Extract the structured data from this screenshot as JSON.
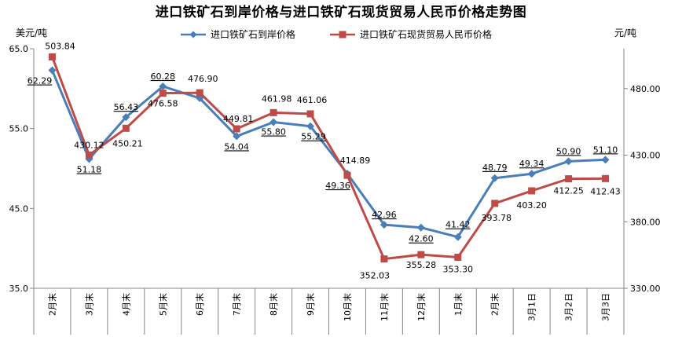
{
  "chart_data": {
    "type": "line",
    "title": "进口铁矿石到岸价格与进口铁矿石现货贸易人民币价格走势图",
    "left_unit": "美元/吨",
    "right_unit": "元/吨",
    "categories": [
      "2月末",
      "3月末",
      "4月末",
      "5月末",
      "6月末",
      "7月末",
      "8月末",
      "9月末",
      "10月末",
      "11月末",
      "12月末",
      "1月末",
      "2月末",
      "3月1日",
      "3月2日",
      "3月3日"
    ],
    "y_left": {
      "ticks": [
        "35.0",
        "45.0",
        "55.0",
        "65.0"
      ],
      "ylim": [
        35,
        65
      ]
    },
    "y_right": {
      "ticks": [
        "330.00",
        "380.00",
        "430.00",
        "480.00"
      ],
      "ylim": [
        330,
        510
      ]
    },
    "legend_position": "top",
    "grid": false,
    "series": [
      {
        "name": "进口铁矿石到岸价格",
        "axis": "left",
        "color": "#4a7ebb",
        "marker": "diamond",
        "values": [
          62.29,
          51.18,
          56.43,
          60.28,
          58.8,
          54.04,
          55.8,
          55.29,
          49.36,
          42.96,
          42.6,
          41.42,
          48.79,
          49.34,
          50.9,
          51.1
        ],
        "labels": [
          "62.29",
          "51.18",
          "56.43",
          "60.28",
          "",
          "54.04",
          "55.80",
          "55.29",
          "49.36",
          "42.96",
          "42.60",
          "41.42",
          "48.79",
          "49.34",
          "50.90",
          "51.10"
        ]
      },
      {
        "name": "进口铁矿石现货贸易人民币价格",
        "axis": "right",
        "color": "#be4b48",
        "marker": "square",
        "values": [
          503.84,
          430.12,
          450.21,
          476.58,
          476.9,
          449.81,
          461.98,
          461.06,
          414.89,
          352.03,
          355.28,
          353.3,
          393.78,
          403.2,
          412.25,
          412.43
        ],
        "labels": [
          "503.84",
          "430.12",
          "450.21",
          "476.58",
          "476.90",
          "449.81",
          "461.98",
          "461.06",
          "414.89",
          "352.03",
          "355.28",
          "353.30",
          "393.78",
          "403.20",
          "412.25",
          "412.43"
        ]
      }
    ]
  }
}
